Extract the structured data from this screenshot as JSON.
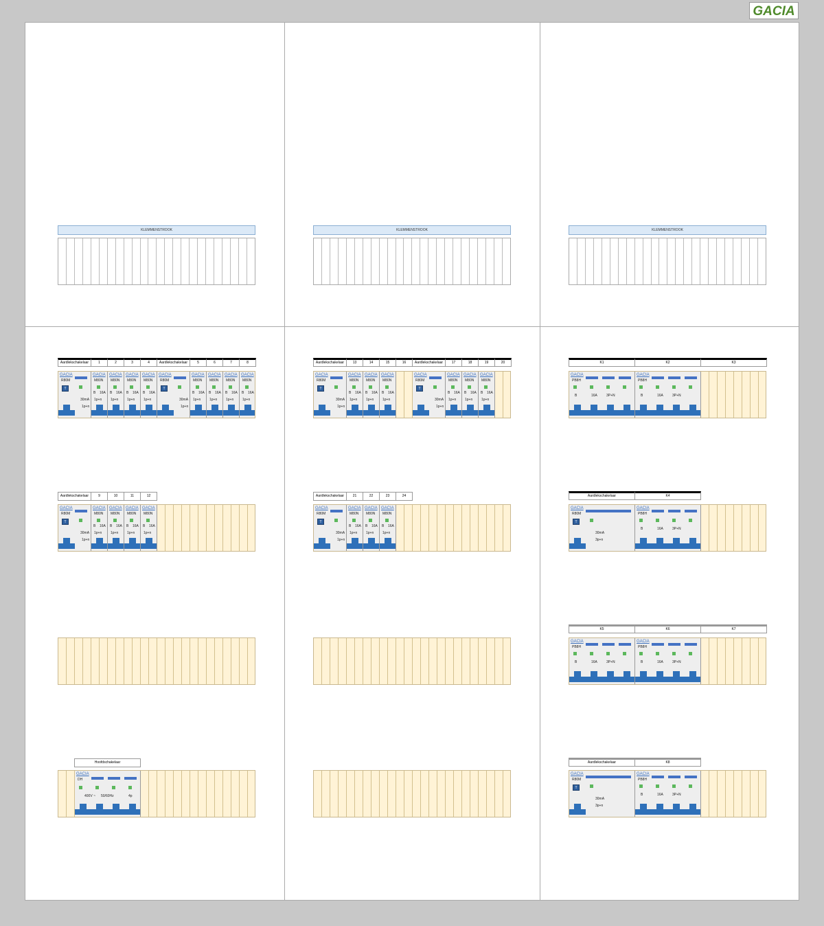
{
  "brand": "GACIA",
  "klemmenstrook_label": "KLEMMENSTROOK",
  "labels": {
    "row1_col1": [
      "Aardlekschakelaar",
      "1",
      "2",
      "3",
      "4",
      "Aardlekschakelaar",
      "5",
      "6",
      "7",
      "8"
    ],
    "row1_col2": [
      "Aardlekschakelaar",
      "13",
      "14",
      "15",
      "16",
      "Aardlekschakelaar",
      "17",
      "18",
      "19",
      "20"
    ],
    "row1_col3": [
      "K1",
      "K2",
      "K3"
    ],
    "row2_col1": [
      "Aardlekschakelaar",
      "9",
      "10",
      "11",
      "12"
    ],
    "row2_col2": [
      "Aardlekschakelaar",
      "21",
      "22",
      "23",
      "24"
    ],
    "row2_col3": [
      "Aardlekschakelaar",
      "K4"
    ],
    "row3_col3": [
      "K5",
      "K6",
      "K7"
    ],
    "row4_col1": [
      "Hoofdschakelaar"
    ],
    "row4_col3": [
      "Aardlekschakelaar",
      "K8"
    ]
  },
  "module_text": {
    "brand": "GACIA",
    "rcd_model": "R80M",
    "rcd_test": "T",
    "rcd_current": "30mA",
    "rcd_poles_1p": "1p+n",
    "rcd_poles_3p": "3p+n",
    "mcb_model": "M80N",
    "mcb_curve": "B",
    "mcb_rating": "16A",
    "mcb_poles": "1p+n",
    "pb_model": "PB8H",
    "pb_poles": "3P+N",
    "main_model": "DH",
    "main_voltage": "400V ~",
    "main_freq": "50/60Hz",
    "main_poles": "4p"
  },
  "colors": {
    "rail": "#fff3d6",
    "module": "#eeeeee",
    "lever": "#4472c4",
    "terminal": "#2e70b9",
    "led": "#5cb85c",
    "brand_text": "#4f8a2b",
    "klem_header": "#dbe9f7"
  }
}
